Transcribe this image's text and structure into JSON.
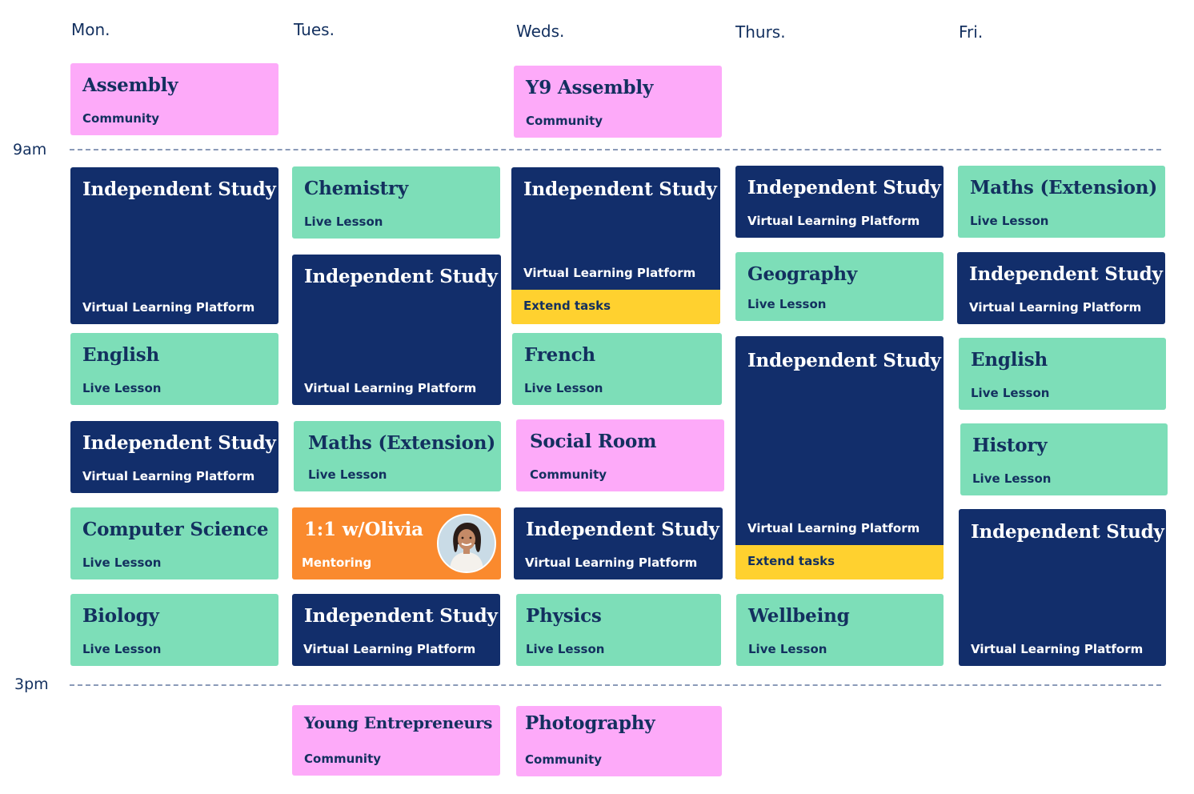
{
  "days": [
    "Mon.",
    "Tues.",
    "Weds.",
    "Thurs.",
    "Fri."
  ],
  "times": {
    "start": "9am",
    "end": "3pm"
  },
  "colors": {
    "live_lesson": "#7ddeb8",
    "independent": "#122e6b",
    "community": "#fdaaf9",
    "mentoring": "#fa8a2e",
    "extend": "#ffd12f",
    "text_dark": "#13305f"
  },
  "events": {
    "mon_assembly": {
      "title": "Assembly",
      "type": "Community"
    },
    "mon_indep1": {
      "title": "Independent Study",
      "type": "Virtual Learning Platform"
    },
    "mon_english": {
      "title": "English",
      "type": "Live Lesson"
    },
    "mon_indep2": {
      "title": "Independent Study",
      "type": "Virtual Learning Platform"
    },
    "mon_cs": {
      "title": "Computer Science",
      "type": "Live Lesson"
    },
    "mon_biology": {
      "title": "Biology",
      "type": "Live Lesson"
    },
    "tue_chemistry": {
      "title": "Chemistry",
      "type": "Live Lesson"
    },
    "tue_indep1": {
      "title": "Independent Study",
      "type": "Virtual Learning Platform"
    },
    "tue_maths": {
      "title": "Maths (Extension)",
      "type": "Live Lesson"
    },
    "tue_mentor": {
      "title": "1:1 w/Olivia",
      "type": "Mentoring"
    },
    "tue_indep2": {
      "title": "Independent Study",
      "type": "Virtual Learning Platform"
    },
    "tue_young": {
      "title": "Young Entrepreneurs",
      "type": "Community"
    },
    "wed_assembly": {
      "title": "Y9 Assembly",
      "type": "Community"
    },
    "wed_indep1": {
      "title": "Independent Study",
      "type": "Virtual Learning Platform",
      "extra": "Extend tasks"
    },
    "wed_french": {
      "title": "French",
      "type": "Live Lesson"
    },
    "wed_social": {
      "title": "Social Room",
      "type": "Community"
    },
    "wed_indep2": {
      "title": "Independent Study",
      "type": "Virtual Learning Platform"
    },
    "wed_physics": {
      "title": "Physics",
      "type": "Live Lesson"
    },
    "wed_photo": {
      "title": "Photography",
      "type": "Community"
    },
    "thu_indep1": {
      "title": "Independent Study",
      "type": "Virtual Learning Platform"
    },
    "thu_geography": {
      "title": "Geography",
      "type": "Live Lesson"
    },
    "thu_indep2": {
      "title": "Independent Study",
      "type": "Virtual Learning Platform",
      "extra": "Extend tasks"
    },
    "thu_wellbeing": {
      "title": "Wellbeing",
      "type": "Live Lesson"
    },
    "fri_maths": {
      "title": "Maths (Extension)",
      "type": "Live Lesson"
    },
    "fri_indep1": {
      "title": "Independent Study",
      "type": "Virtual Learning Platform"
    },
    "fri_english": {
      "title": "English",
      "type": "Live Lesson"
    },
    "fri_history": {
      "title": "History",
      "type": "Live Lesson"
    },
    "fri_indep2": {
      "title": "Independent Study",
      "type": "Virtual Learning Platform"
    }
  }
}
